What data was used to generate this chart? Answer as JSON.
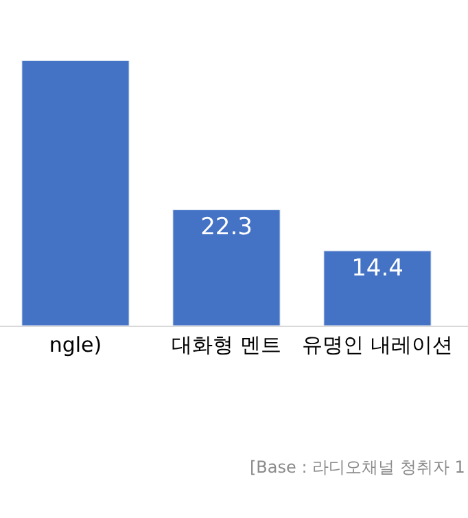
{
  "chart_data": {
    "type": "bar",
    "categories": [
      "ngle)",
      "대화형 멘트",
      "유명인 내레이션"
    ],
    "values": [
      51.0,
      22.3,
      14.4
    ],
    "value_labels": [
      null,
      "22.3",
      "14.4"
    ],
    "color": "#4472c4",
    "legend": false,
    "annotations": [
      "[Base : 라디오채널 청취자 1"
    ]
  }
}
